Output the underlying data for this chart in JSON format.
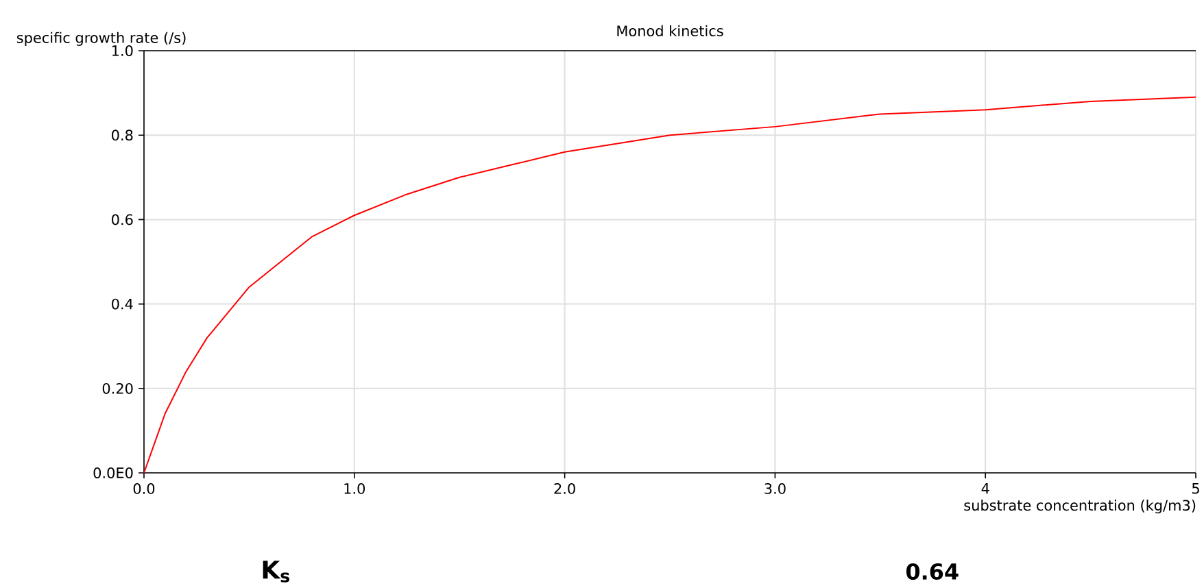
{
  "chart_data": {
    "type": "line",
    "title": "Monod kinetics",
    "xlabel": "substrate concentration (kg/m3)",
    "ylabel": "specific growth rate (/s)",
    "x": [
      0,
      0.05,
      0.1,
      0.2,
      0.3,
      0.4,
      0.5,
      0.6,
      0.8,
      1.0,
      1.25,
      1.5,
      1.75,
      2.0,
      2.5,
      3.0,
      3.5,
      4.0,
      4.5,
      5.0
    ],
    "series": [
      {
        "color": "#ff0000",
        "values": [
          0,
          0.07,
          0.14,
          0.24,
          0.32,
          0.38,
          0.44,
          0.48,
          0.56,
          0.61,
          0.66,
          0.7,
          0.73,
          0.76,
          0.8,
          0.82,
          0.85,
          0.86,
          0.88,
          0.89
        ]
      }
    ],
    "xlim": [
      0,
      5
    ],
    "ylim": [
      0,
      1
    ],
    "xticks": [
      {
        "value": 0,
        "label": "0.0"
      },
      {
        "value": 1,
        "label": "1.0"
      },
      {
        "value": 2,
        "label": "2.0"
      },
      {
        "value": 3,
        "label": "3.0"
      },
      {
        "value": 4,
        "label": "4"
      },
      {
        "value": 5,
        "label": "5"
      }
    ],
    "yticks": [
      {
        "value": 0,
        "label": "0.0E0"
      },
      {
        "value": 0.2,
        "label": "0.20"
      },
      {
        "value": 0.4,
        "label": "0.4"
      },
      {
        "value": 0.6,
        "label": "0.6"
      },
      {
        "value": 0.8,
        "label": "0.8"
      },
      {
        "value": 1.0,
        "label": "1.0"
      }
    ],
    "grid": true,
    "line_style": "solid",
    "annotations": [
      "K$_{s}$",
      "0.64"
    ]
  }
}
